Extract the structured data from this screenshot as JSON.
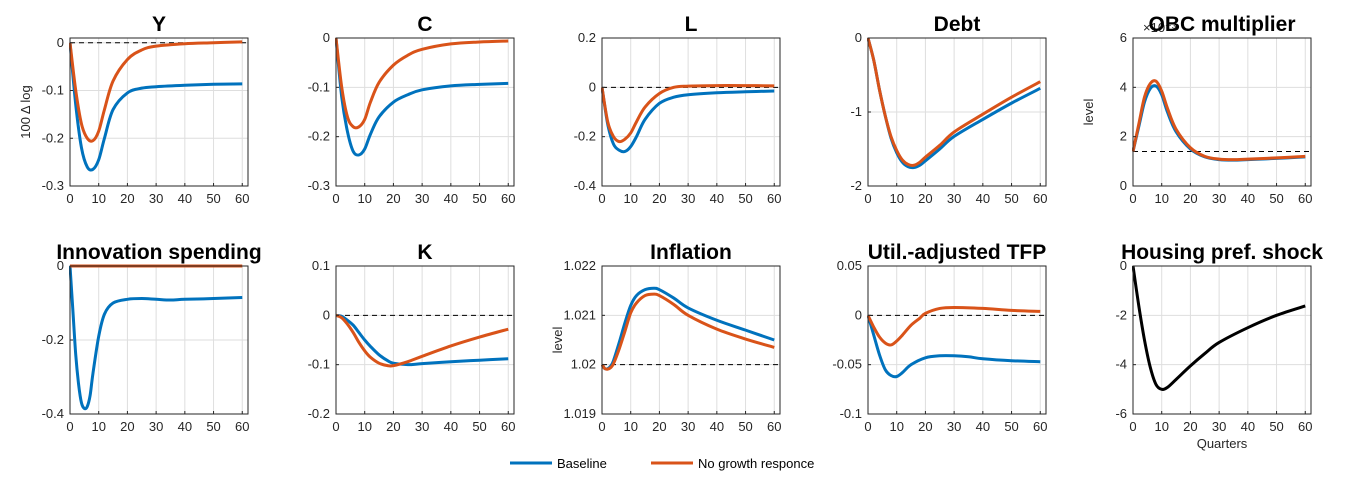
{
  "legend": {
    "entries": [
      {
        "name": "Baseline",
        "color": "#0072bd"
      },
      {
        "name": "No growth responce",
        "color": "#d95319"
      }
    ]
  },
  "colors": {
    "baseline": "#0072bd",
    "nogrowth": "#d95319",
    "single": "#000000",
    "grid": "#dedede",
    "reference": "#000000"
  },
  "chart_data": [
    {
      "type": "line",
      "title": "Y",
      "ylabel": "100 Δ log",
      "xlabel": "",
      "xlim": [
        0,
        62
      ],
      "ylim": [
        -0.3,
        0.01
      ],
      "reference_y": 0,
      "xticks": [
        0,
        10,
        20,
        30,
        40,
        50,
        60
      ],
      "xtick_labels": [
        "0",
        "10",
        "20",
        "30",
        "40",
        "50",
        "60"
      ],
      "yticks": [
        -0.3,
        -0.2,
        -0.1,
        0
      ],
      "ytick_labels": [
        "-0.3",
        "-0.2",
        "-0.1",
        "0"
      ],
      "series": [
        {
          "name": "Baseline",
          "x": [
            0,
            2,
            4,
            6,
            8,
            10,
            12,
            15,
            20,
            25,
            30,
            40,
            50,
            60
          ],
          "y": [
            0,
            -0.13,
            -0.22,
            -0.26,
            -0.265,
            -0.245,
            -0.2,
            -0.14,
            -0.105,
            -0.095,
            -0.092,
            -0.089,
            -0.087,
            -0.086
          ]
        },
        {
          "name": "No growth responce",
          "x": [
            0,
            2,
            4,
            6,
            8,
            10,
            12,
            15,
            20,
            25,
            30,
            40,
            50,
            60
          ],
          "y": [
            0,
            -0.1,
            -0.17,
            -0.2,
            -0.205,
            -0.185,
            -0.14,
            -0.08,
            -0.035,
            -0.015,
            -0.007,
            -0.002,
            0.0,
            0.002
          ]
        }
      ]
    },
    {
      "type": "line",
      "title": "C",
      "ylabel": "",
      "xlabel": "",
      "xlim": [
        0,
        62
      ],
      "ylim": [
        -0.3,
        0
      ],
      "reference_y": 0,
      "xticks": [
        0,
        10,
        20,
        30,
        40,
        50,
        60
      ],
      "xtick_labels": [
        "0",
        "10",
        "20",
        "30",
        "40",
        "50",
        "60"
      ],
      "yticks": [
        -0.3,
        -0.2,
        -0.1,
        0
      ],
      "ytick_labels": [
        "-0.3",
        "-0.2",
        "-0.1",
        "0"
      ],
      "series": [
        {
          "name": "Baseline",
          "x": [
            0,
            2,
            4,
            6,
            8,
            10,
            12,
            15,
            20,
            25,
            30,
            40,
            50,
            60
          ],
          "y": [
            0,
            -0.12,
            -0.19,
            -0.23,
            -0.237,
            -0.225,
            -0.195,
            -0.16,
            -0.13,
            -0.115,
            -0.105,
            -0.097,
            -0.094,
            -0.092
          ]
        },
        {
          "name": "No growth responce",
          "x": [
            0,
            2,
            4,
            6,
            8,
            10,
            12,
            15,
            20,
            25,
            30,
            40,
            50,
            60
          ],
          "y": [
            0,
            -0.1,
            -0.16,
            -0.18,
            -0.18,
            -0.165,
            -0.13,
            -0.09,
            -0.055,
            -0.035,
            -0.023,
            -0.012,
            -0.008,
            -0.006
          ]
        }
      ]
    },
    {
      "type": "line",
      "title": "L",
      "ylabel": "",
      "xlabel": "",
      "xlim": [
        0,
        62
      ],
      "ylim": [
        -0.4,
        0.2
      ],
      "reference_y": 0,
      "xticks": [
        0,
        10,
        20,
        30,
        40,
        50,
        60
      ],
      "xtick_labels": [
        "0",
        "10",
        "20",
        "30",
        "40",
        "50",
        "60"
      ],
      "yticks": [
        -0.4,
        -0.2,
        0,
        0.2
      ],
      "ytick_labels": [
        "-0.4",
        "-0.2",
        "0",
        "0.2"
      ],
      "series": [
        {
          "name": "Baseline",
          "x": [
            0,
            2,
            4,
            6,
            8,
            10,
            12,
            15,
            20,
            25,
            30,
            40,
            50,
            60
          ],
          "y": [
            0,
            -0.15,
            -0.23,
            -0.255,
            -0.26,
            -0.24,
            -0.2,
            -0.13,
            -0.065,
            -0.04,
            -0.03,
            -0.022,
            -0.018,
            -0.015
          ]
        },
        {
          "name": "No growth responce",
          "x": [
            0,
            2,
            4,
            6,
            8,
            10,
            12,
            15,
            20,
            25,
            30,
            40,
            50,
            60
          ],
          "y": [
            0,
            -0.14,
            -0.2,
            -0.22,
            -0.21,
            -0.185,
            -0.14,
            -0.08,
            -0.025,
            0,
            0.005,
            0.007,
            0.007,
            0.006
          ]
        }
      ]
    },
    {
      "type": "line",
      "title": "Debt",
      "ylabel": "",
      "xlabel": "",
      "xlim": [
        0,
        62
      ],
      "ylim": [
        -2,
        0
      ],
      "reference_y": 0,
      "xticks": [
        0,
        10,
        20,
        30,
        40,
        50,
        60
      ],
      "xtick_labels": [
        "0",
        "10",
        "20",
        "30",
        "40",
        "50",
        "60"
      ],
      "yticks": [
        -2,
        -1,
        0
      ],
      "ytick_labels": [
        "-2",
        "-1",
        "0"
      ],
      "series": [
        {
          "name": "Baseline",
          "x": [
            0,
            2,
            4,
            6,
            8,
            10,
            12,
            14,
            16,
            18,
            20,
            25,
            30,
            40,
            50,
            60
          ],
          "y": [
            0,
            -0.3,
            -0.7,
            -1.05,
            -1.35,
            -1.55,
            -1.68,
            -1.74,
            -1.75,
            -1.72,
            -1.66,
            -1.5,
            -1.33,
            -1.1,
            -0.88,
            -0.68
          ]
        },
        {
          "name": "No growth responce",
          "x": [
            0,
            2,
            4,
            6,
            8,
            10,
            12,
            14,
            16,
            18,
            20,
            25,
            30,
            40,
            50,
            60
          ],
          "y": [
            0,
            -0.3,
            -0.7,
            -1.05,
            -1.33,
            -1.52,
            -1.65,
            -1.71,
            -1.72,
            -1.68,
            -1.61,
            -1.45,
            -1.27,
            -1.03,
            -0.8,
            -0.59
          ]
        }
      ]
    },
    {
      "type": "line",
      "title": "OBC multiplier",
      "ylabel": "level",
      "xlabel": "",
      "xlim": [
        0,
        62
      ],
      "ylim": [
        0,
        6
      ],
      "reference_y": 1.4,
      "y_exponent_label": "×10⁻³",
      "xticks": [
        0,
        10,
        20,
        30,
        40,
        50,
        60
      ],
      "xtick_labels": [
        "0",
        "10",
        "20",
        "30",
        "40",
        "50",
        "60"
      ],
      "yticks": [
        0,
        2,
        4,
        6
      ],
      "ytick_labels": [
        "0",
        "2",
        "4",
        "6"
      ],
      "series": [
        {
          "name": "Baseline",
          "x": [
            0,
            2,
            4,
            6,
            8,
            10,
            12,
            15,
            20,
            25,
            30,
            35,
            40,
            50,
            60
          ],
          "y": [
            1.4,
            2.4,
            3.4,
            3.95,
            4.05,
            3.7,
            3.0,
            2.2,
            1.5,
            1.18,
            1.07,
            1.05,
            1.07,
            1.12,
            1.18
          ]
        },
        {
          "name": "No growth responce",
          "x": [
            0,
            2,
            4,
            6,
            8,
            10,
            12,
            15,
            20,
            25,
            30,
            35,
            40,
            50,
            60
          ],
          "y": [
            1.4,
            2.5,
            3.6,
            4.15,
            4.25,
            3.85,
            3.15,
            2.3,
            1.55,
            1.2,
            1.09,
            1.07,
            1.09,
            1.14,
            1.2
          ]
        }
      ]
    },
    {
      "type": "line",
      "title": "Innovation spending",
      "ylabel": "",
      "xlabel": "",
      "xlim": [
        0,
        62
      ],
      "ylim": [
        -0.4,
        0
      ],
      "reference_y": 0,
      "xticks": [
        0,
        10,
        20,
        30,
        40,
        50,
        60
      ],
      "xtick_labels": [
        "0",
        "10",
        "20",
        "30",
        "40",
        "50",
        "60"
      ],
      "yticks": [
        -0.4,
        -0.2,
        0
      ],
      "ytick_labels": [
        "-0.4",
        "-0.2",
        "0"
      ],
      "series": [
        {
          "name": "Baseline",
          "x": [
            0,
            1,
            2,
            3,
            4,
            5,
            6,
            7,
            8,
            10,
            12,
            15,
            20,
            25,
            30,
            35,
            40,
            50,
            60
          ],
          "y": [
            0,
            -0.12,
            -0.24,
            -0.32,
            -0.37,
            -0.385,
            -0.38,
            -0.35,
            -0.29,
            -0.19,
            -0.13,
            -0.1,
            -0.09,
            -0.088,
            -0.09,
            -0.092,
            -0.09,
            -0.088,
            -0.085
          ]
        },
        {
          "name": "No growth responce",
          "x": [
            0,
            60
          ],
          "y": [
            0,
            0
          ]
        }
      ]
    },
    {
      "type": "line",
      "title": "K",
      "ylabel": "",
      "xlabel": "",
      "xlim": [
        0,
        62
      ],
      "ylim": [
        -0.2,
        0.1
      ],
      "reference_y": 0,
      "xticks": [
        0,
        10,
        20,
        30,
        40,
        50,
        60
      ],
      "xtick_labels": [
        "0",
        "10",
        "20",
        "30",
        "40",
        "50",
        "60"
      ],
      "yticks": [
        -0.2,
        -0.1,
        0,
        0.1
      ],
      "ytick_labels": [
        "-0.2",
        "-0.1",
        "0",
        "0.1"
      ],
      "series": [
        {
          "name": "Baseline",
          "x": [
            0,
            2,
            4,
            6,
            8,
            10,
            12,
            15,
            18,
            20,
            25,
            30,
            40,
            50,
            60
          ],
          "y": [
            0,
            -0.002,
            -0.01,
            -0.02,
            -0.035,
            -0.05,
            -0.063,
            -0.08,
            -0.092,
            -0.097,
            -0.1,
            -0.098,
            -0.094,
            -0.091,
            -0.088
          ]
        },
        {
          "name": "No growth responce",
          "x": [
            0,
            2,
            4,
            6,
            8,
            10,
            12,
            15,
            18,
            20,
            25,
            30,
            40,
            50,
            60
          ],
          "y": [
            0,
            -0.005,
            -0.018,
            -0.035,
            -0.055,
            -0.072,
            -0.085,
            -0.097,
            -0.102,
            -0.102,
            -0.094,
            -0.083,
            -0.062,
            -0.044,
            -0.028
          ]
        }
      ]
    },
    {
      "type": "line",
      "title": "Inflation",
      "ylabel": "level",
      "xlabel": "",
      "xlim": [
        0,
        62
      ],
      "ylim": [
        1.019,
        1.022
      ],
      "reference_y": 1.02,
      "xticks": [
        0,
        10,
        20,
        30,
        40,
        50,
        60
      ],
      "xtick_labels": [
        "0",
        "10",
        "20",
        "30",
        "40",
        "50",
        "60"
      ],
      "yticks": [
        1.019,
        1.02,
        1.021,
        1.022
      ],
      "ytick_labels": [
        "1.019",
        "1.02",
        "1.021",
        "1.022"
      ],
      "series": [
        {
          "name": "Baseline",
          "x": [
            0,
            1,
            2,
            3,
            4,
            6,
            8,
            10,
            12,
            15,
            18,
            20,
            25,
            30,
            40,
            50,
            60
          ],
          "y": [
            1.02,
            1.01992,
            1.01992,
            1.01997,
            1.02008,
            1.02045,
            1.02085,
            1.0212,
            1.0214,
            1.02152,
            1.02155,
            1.02152,
            1.02135,
            1.02115,
            1.0209,
            1.0207,
            1.0205
          ]
        },
        {
          "name": "No growth responce",
          "x": [
            0,
            1,
            2,
            3,
            4,
            6,
            8,
            10,
            12,
            15,
            18,
            20,
            25,
            30,
            40,
            50,
            60
          ],
          "y": [
            1.02,
            1.01992,
            1.01991,
            1.01994,
            1.02002,
            1.02032,
            1.02068,
            1.02105,
            1.02125,
            1.0214,
            1.02143,
            1.0214,
            1.02122,
            1.021,
            1.02072,
            1.02052,
            1.02035
          ]
        }
      ]
    },
    {
      "type": "line",
      "title": "Util.-adjusted TFP",
      "ylabel": "",
      "xlabel": "",
      "xlim": [
        0,
        62
      ],
      "ylim": [
        -0.1,
        0.05
      ],
      "reference_y": 0,
      "xticks": [
        0,
        10,
        20,
        30,
        40,
        50,
        60
      ],
      "xtick_labels": [
        "0",
        "10",
        "20",
        "30",
        "40",
        "50",
        "60"
      ],
      "yticks": [
        -0.1,
        -0.05,
        0,
        0.05
      ],
      "ytick_labels": [
        "-0.1",
        "-0.05",
        "0",
        "0.05"
      ],
      "series": [
        {
          "name": "Baseline",
          "x": [
            0,
            2,
            4,
            6,
            8,
            10,
            12,
            15,
            20,
            25,
            30,
            35,
            40,
            50,
            60
          ],
          "y": [
            0,
            -0.02,
            -0.04,
            -0.055,
            -0.061,
            -0.062,
            -0.058,
            -0.05,
            -0.043,
            -0.041,
            -0.041,
            -0.042,
            -0.044,
            -0.046,
            -0.047
          ]
        },
        {
          "name": "No growth responce",
          "x": [
            0,
            2,
            4,
            6,
            8,
            10,
            12,
            15,
            18,
            20,
            25,
            30,
            40,
            50,
            60
          ],
          "y": [
            0,
            -0.012,
            -0.022,
            -0.028,
            -0.03,
            -0.026,
            -0.02,
            -0.01,
            -0.003,
            0.002,
            0.007,
            0.008,
            0.007,
            0.005,
            0.004
          ]
        }
      ]
    },
    {
      "type": "line",
      "title": "Housing pref. shock",
      "ylabel": "",
      "xlabel": "Quarters",
      "xlim": [
        0,
        62
      ],
      "ylim": [
        -6,
        0
      ],
      "reference_y": 0,
      "xticks": [
        0,
        10,
        20,
        30,
        40,
        50,
        60
      ],
      "xtick_labels": [
        "0",
        "10",
        "20",
        "30",
        "40",
        "50",
        "60"
      ],
      "yticks": [
        -6,
        -4,
        -2,
        0
      ],
      "ytick_labels": [
        "-6",
        "-4",
        "-2",
        "0"
      ],
      "series": [
        {
          "x": [
            0,
            2,
            4,
            6,
            8,
            10,
            12,
            15,
            20,
            25,
            30,
            40,
            50,
            60
          ],
          "y": [
            0,
            -1.6,
            -3.0,
            -4.1,
            -4.8,
            -5.0,
            -4.92,
            -4.6,
            -4.05,
            -3.55,
            -3.1,
            -2.5,
            -2.0,
            -1.62
          ]
        }
      ]
    }
  ]
}
